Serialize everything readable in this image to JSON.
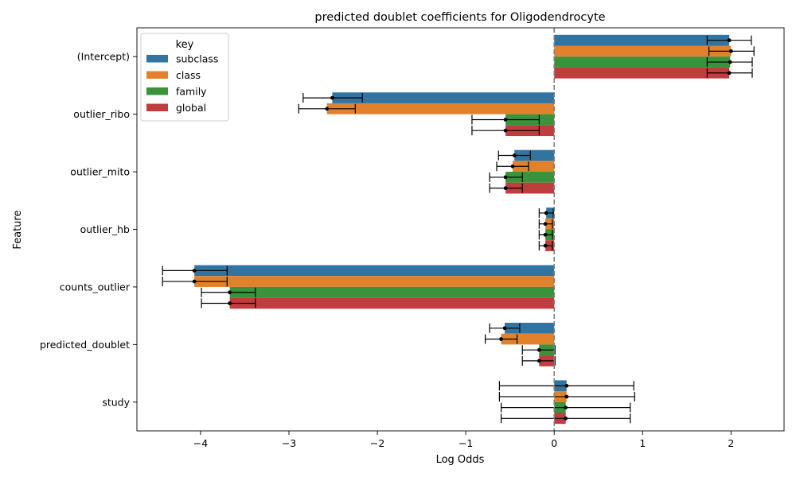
{
  "chart_data": {
    "type": "bar",
    "orientation": "horizontal",
    "title": "predicted doublet coefficients for Oligodendrocyte",
    "xlabel": "Log Odds",
    "ylabel": "Feature",
    "xlim": [
      -4.72,
      2.6
    ],
    "xticks": [
      -4,
      -3,
      -2,
      -1,
      0,
      1,
      2
    ],
    "xtick_labels": [
      "−4",
      "−3",
      "−2",
      "−1",
      "0",
      "1",
      "2"
    ],
    "reference_line": 0,
    "categories": [
      "(Intercept)",
      "outlier_ribo",
      "outlier_mito",
      "outlier_hb",
      "counts_outlier",
      "predicted_doublet",
      "study"
    ],
    "legend": {
      "title": "key",
      "position": "top-left"
    },
    "series": [
      {
        "name": "subclass",
        "color": "#3274a1",
        "values": [
          1.98,
          -2.51,
          -0.45,
          -0.09,
          -4.07,
          -0.56,
          0.14
        ],
        "ci_low": [
          1.73,
          -2.84,
          -0.63,
          -0.17,
          -4.43,
          -0.73,
          -0.62
        ],
        "ci_high": [
          2.23,
          -2.17,
          -0.27,
          -0.01,
          -3.7,
          -0.39,
          0.9
        ]
      },
      {
        "name": "class",
        "color": "#e1812c",
        "values": [
          2.0,
          -2.57,
          -0.47,
          -0.1,
          -4.07,
          -0.6,
          0.14
        ],
        "ci_low": [
          1.75,
          -2.89,
          -0.65,
          -0.17,
          -4.43,
          -0.78,
          -0.62
        ],
        "ci_high": [
          2.26,
          -2.25,
          -0.29,
          -0.02,
          -3.7,
          -0.42,
          0.91
        ]
      },
      {
        "name": "family",
        "color": "#3a923a",
        "values": [
          1.99,
          -0.55,
          -0.55,
          -0.1,
          -3.67,
          -0.17,
          0.13
        ],
        "ci_low": [
          1.73,
          -0.93,
          -0.73,
          -0.17,
          -3.99,
          -0.36,
          -0.6
        ],
        "ci_high": [
          2.24,
          -0.17,
          -0.36,
          -0.02,
          -3.38,
          0.01,
          0.86
        ]
      },
      {
        "name": "global",
        "color": "#c03d3e",
        "values": [
          1.98,
          -0.55,
          -0.55,
          -0.1,
          -3.67,
          -0.17,
          0.13
        ],
        "ci_low": [
          1.73,
          -0.93,
          -0.73,
          -0.17,
          -3.99,
          -0.36,
          -0.6
        ],
        "ci_high": [
          2.24,
          -0.17,
          -0.36,
          -0.02,
          -3.38,
          0.01,
          0.86
        ]
      }
    ]
  }
}
